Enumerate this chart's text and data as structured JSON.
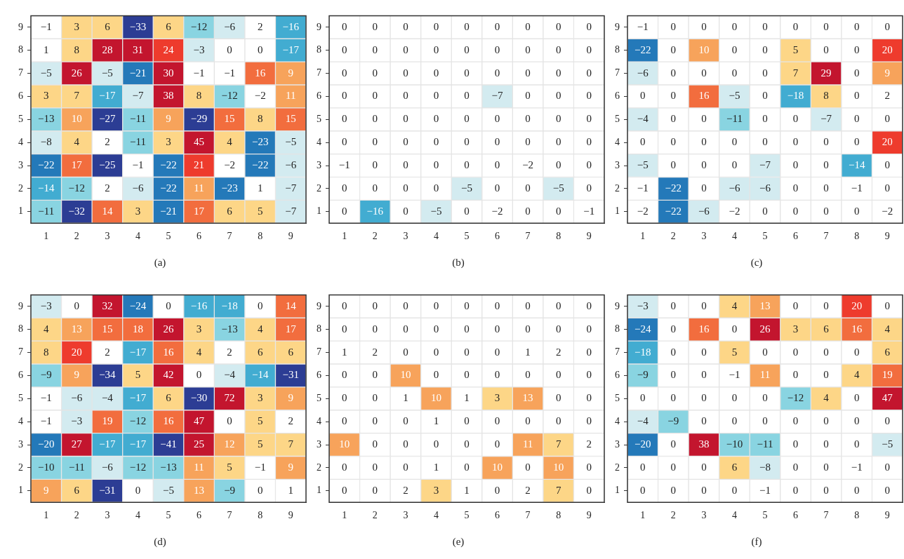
{
  "chart_data": [
    {
      "type": "heatmap",
      "title": "(a)",
      "categories": [
        "1",
        "2",
        "3",
        "4",
        "5",
        "6",
        "7",
        "8",
        "9"
      ],
      "y_categories": [
        "9",
        "8",
        "7",
        "6",
        "5",
        "4",
        "3",
        "2",
        "1"
      ],
      "data_labels": true,
      "cells": [
        [
          -1,
          3,
          6,
          -33,
          6,
          -12,
          -6,
          2,
          -16
        ],
        [
          1,
          8,
          28,
          31,
          24,
          -3,
          0,
          0,
          -17
        ],
        [
          -5,
          26,
          -5,
          -21,
          30,
          -1,
          -1,
          16,
          9
        ],
        [
          3,
          7,
          -17,
          -7,
          38,
          8,
          -12,
          -2,
          11
        ],
        [
          -13,
          10,
          -27,
          -11,
          9,
          -29,
          15,
          8,
          15
        ],
        [
          -8,
          4,
          2,
          -11,
          3,
          45,
          4,
          -23,
          -5
        ],
        [
          -22,
          17,
          -25,
          -1,
          -22,
          21,
          -2,
          -22,
          -6
        ],
        [
          -14,
          -12,
          2,
          -6,
          -22,
          11,
          -23,
          1,
          -7
        ],
        [
          -11,
          -32,
          14,
          3,
          -21,
          17,
          6,
          5,
          -7
        ]
      ]
    },
    {
      "type": "heatmap",
      "title": "(b)",
      "categories": [
        "1",
        "2",
        "3",
        "4",
        "5",
        "6",
        "7",
        "8",
        "9"
      ],
      "y_categories": [
        "9",
        "8",
        "7",
        "6",
        "5",
        "4",
        "3",
        "2",
        "1"
      ],
      "data_labels": true,
      "cells": [
        [
          0,
          0,
          0,
          0,
          0,
          0,
          0,
          0,
          0
        ],
        [
          0,
          0,
          0,
          0,
          0,
          0,
          0,
          0,
          0
        ],
        [
          0,
          0,
          0,
          0,
          0,
          0,
          0,
          0,
          0
        ],
        [
          0,
          0,
          0,
          0,
          0,
          -7,
          0,
          0,
          0
        ],
        [
          0,
          0,
          0,
          0,
          0,
          0,
          0,
          0,
          0
        ],
        [
          0,
          0,
          0,
          0,
          0,
          0,
          0,
          0,
          0
        ],
        [
          -1,
          0,
          0,
          0,
          0,
          0,
          -2,
          0,
          0
        ],
        [
          0,
          0,
          0,
          0,
          -5,
          0,
          0,
          -5,
          0
        ],
        [
          0,
          -16,
          0,
          -5,
          0,
          -2,
          0,
          0,
          -1
        ]
      ]
    },
    {
      "type": "heatmap",
      "title": "(c)",
      "categories": [
        "1",
        "2",
        "3",
        "4",
        "5",
        "6",
        "7",
        "8",
        "9"
      ],
      "y_categories": [
        "9",
        "8",
        "7",
        "6",
        "5",
        "4",
        "3",
        "2",
        "1"
      ],
      "data_labels": true,
      "cells": [
        [
          -1,
          0,
          0,
          0,
          0,
          0,
          0,
          0,
          0
        ],
        [
          -22,
          0,
          10,
          0,
          0,
          5,
          0,
          0,
          20
        ],
        [
          -6,
          0,
          0,
          0,
          0,
          7,
          29,
          0,
          9
        ],
        [
          0,
          0,
          16,
          -5,
          0,
          -18,
          8,
          0,
          2
        ],
        [
          -4,
          0,
          0,
          -11,
          0,
          0,
          -7,
          0,
          0
        ],
        [
          0,
          0,
          0,
          0,
          0,
          0,
          0,
          0,
          20
        ],
        [
          -5,
          0,
          0,
          0,
          -7,
          0,
          0,
          -14,
          0
        ],
        [
          -1,
          -22,
          0,
          -6,
          -6,
          0,
          0,
          -1,
          0
        ],
        [
          -2,
          -22,
          -6,
          -2,
          0,
          0,
          0,
          0,
          -2
        ]
      ]
    },
    {
      "type": "heatmap",
      "title": "(d)",
      "categories": [
        "1",
        "2",
        "3",
        "4",
        "5",
        "6",
        "7",
        "8",
        "9"
      ],
      "y_categories": [
        "9",
        "8",
        "7",
        "6",
        "5",
        "4",
        "3",
        "2",
        "1"
      ],
      "data_labels": true,
      "cells": [
        [
          -3,
          0,
          32,
          -24,
          0,
          -16,
          -18,
          0,
          14
        ],
        [
          4,
          13,
          15,
          18,
          26,
          3,
          -13,
          4,
          17
        ],
        [
          8,
          20,
          2,
          -17,
          16,
          4,
          2,
          6,
          6
        ],
        [
          -9,
          9,
          -34,
          5,
          42,
          0,
          -4,
          -14,
          -31
        ],
        [
          -1,
          -6,
          -4,
          -17,
          6,
          -30,
          72,
          3,
          9
        ],
        [
          -1,
          -3,
          19,
          -12,
          16,
          47,
          0,
          5,
          2
        ],
        [
          -20,
          27,
          -17,
          -17,
          -41,
          25,
          12,
          5,
          7
        ],
        [
          -10,
          -11,
          -6,
          -12,
          -13,
          11,
          5,
          -1,
          9
        ],
        [
          9,
          6,
          -31,
          0,
          -5,
          13,
          -9,
          0,
          1
        ]
      ]
    },
    {
      "type": "heatmap",
      "title": "(e)",
      "categories": [
        "1",
        "2",
        "3",
        "4",
        "5",
        "6",
        "7",
        "8",
        "9"
      ],
      "y_categories": [
        "9",
        "8",
        "7",
        "6",
        "5",
        "4",
        "3",
        "2",
        "1"
      ],
      "data_labels": true,
      "cells": [
        [
          0,
          0,
          0,
          0,
          0,
          0,
          0,
          0,
          0
        ],
        [
          0,
          0,
          0,
          0,
          0,
          0,
          0,
          0,
          0
        ],
        [
          1,
          2,
          0,
          0,
          0,
          0,
          1,
          2,
          0
        ],
        [
          0,
          0,
          10,
          0,
          0,
          0,
          0,
          0,
          0
        ],
        [
          0,
          0,
          1,
          10,
          1,
          3,
          13,
          0,
          0
        ],
        [
          0,
          0,
          0,
          1,
          0,
          0,
          0,
          0,
          0
        ],
        [
          10,
          0,
          0,
          0,
          0,
          0,
          11,
          7,
          2
        ],
        [
          0,
          0,
          0,
          1,
          0,
          10,
          0,
          10,
          0
        ],
        [
          0,
          0,
          2,
          3,
          1,
          0,
          2,
          7,
          0
        ]
      ]
    },
    {
      "type": "heatmap",
      "title": "(f)",
      "categories": [
        "1",
        "2",
        "3",
        "4",
        "5",
        "6",
        "7",
        "8",
        "9"
      ],
      "y_categories": [
        "9",
        "8",
        "7",
        "6",
        "5",
        "4",
        "3",
        "2",
        "1"
      ],
      "data_labels": true,
      "cells": [
        [
          -3,
          0,
          0,
          4,
          13,
          0,
          0,
          20,
          0
        ],
        [
          -24,
          0,
          16,
          0,
          26,
          3,
          6,
          16,
          4
        ],
        [
          -18,
          0,
          0,
          5,
          0,
          0,
          0,
          0,
          6
        ],
        [
          -9,
          0,
          0,
          -1,
          11,
          0,
          0,
          4,
          19
        ],
        [
          0,
          0,
          0,
          0,
          0,
          -12,
          4,
          0,
          47
        ],
        [
          -4,
          -9,
          0,
          0,
          0,
          0,
          0,
          0,
          0
        ],
        [
          -20,
          0,
          38,
          -10,
          -11,
          0,
          0,
          0,
          -5
        ],
        [
          0,
          0,
          0,
          6,
          -8,
          0,
          0,
          -1,
          0
        ],
        [
          0,
          0,
          0,
          0,
          -1,
          0,
          0,
          0,
          0
        ]
      ]
    }
  ]
}
